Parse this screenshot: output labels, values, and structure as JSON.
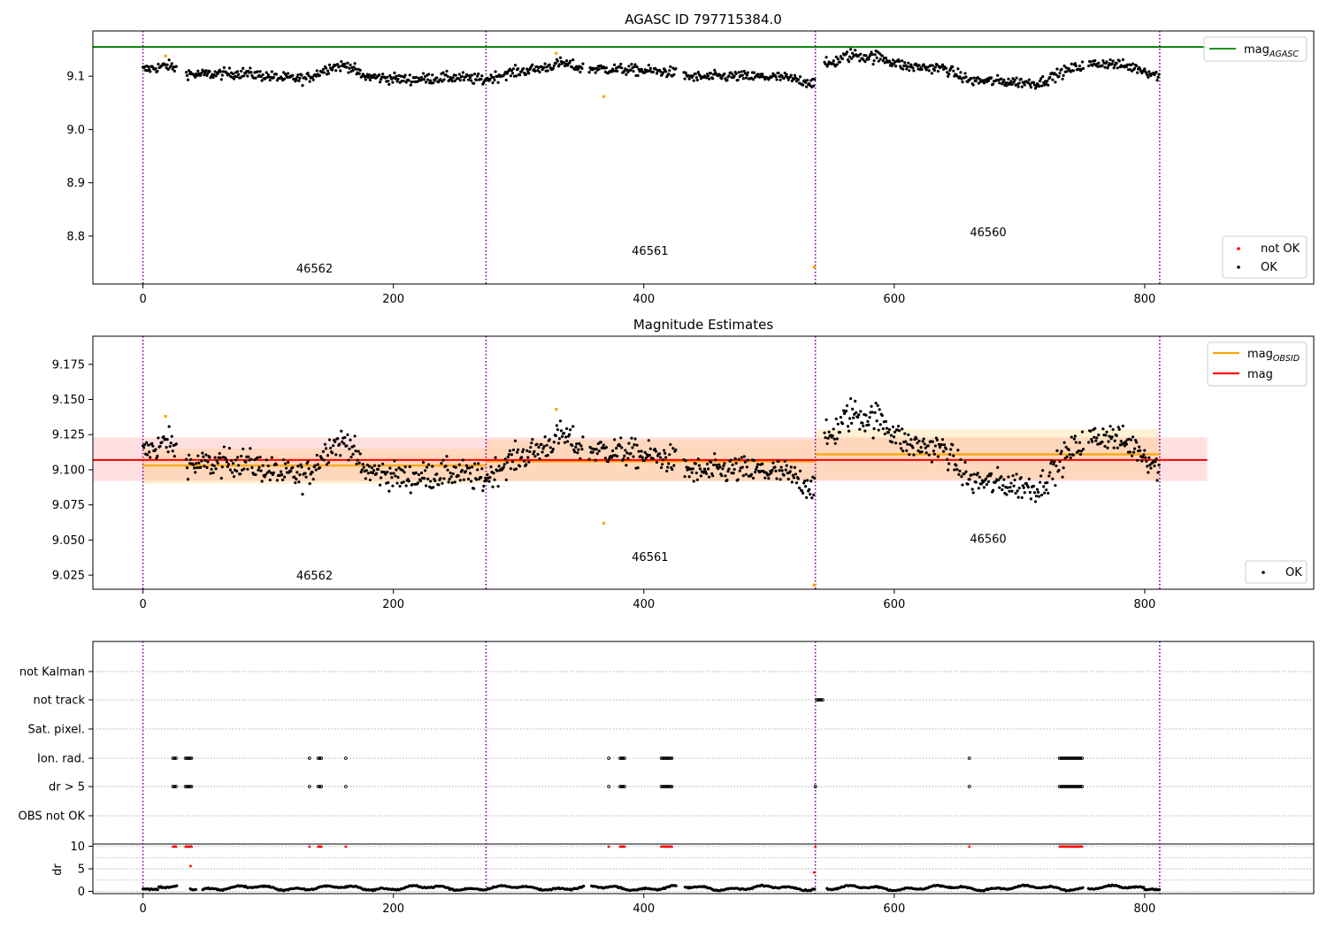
{
  "chart_data": [
    {
      "type": "scatter",
      "title": "AGASC ID 797715384.0",
      "xlabel": "",
      "ylabel": "",
      "xlim": [
        -40,
        935
      ],
      "ylim": [
        8.71,
        9.185
      ],
      "xticks": [
        0,
        200,
        400,
        600,
        800
      ],
      "yticks": [
        "8.8",
        "8.9",
        "9.0",
        "9.1"
      ],
      "ytick_values": [
        8.8,
        8.9,
        9.0,
        9.1
      ],
      "obsid_boundaries": [
        0,
        274,
        537,
        812
      ],
      "obsid_labels": [
        {
          "text": "46562",
          "x": 137,
          "y": 8.732
        },
        {
          "text": "46561",
          "x": 405,
          "y": 8.765
        },
        {
          "text": "46560",
          "x": 675,
          "y": 8.8
        }
      ],
      "reference_line": {
        "name": "mag",
        "subscript": "AGASC",
        "value": 9.155,
        "x_range": [
          -40,
          850
        ],
        "color": "#008000"
      },
      "outliers": [
        {
          "x": 18,
          "y": 9.138
        },
        {
          "x": 330,
          "y": 9.143
        },
        {
          "x": 368,
          "y": 9.062
        },
        {
          "x": 536,
          "y": 8.742
        }
      ],
      "legend_top": "top-right",
      "legend_bottom": "bottom-right",
      "series": [
        {
          "name": "not OK",
          "color": "#ff0000"
        },
        {
          "name": "OK",
          "color": "#000000"
        }
      ]
    },
    {
      "type": "scatter",
      "title": "Magnitude Estimates",
      "xlabel": "",
      "ylabel": "",
      "xlim": [
        -40,
        935
      ],
      "ylim": [
        9.015,
        9.195
      ],
      "xticks": [
        0,
        200,
        400,
        600,
        800
      ],
      "yticks": [
        "9.025",
        "9.050",
        "9.075",
        "9.100",
        "9.125",
        "9.150",
        "9.175"
      ],
      "ytick_values": [
        9.025,
        9.05,
        9.075,
        9.1,
        9.125,
        9.15,
        9.175
      ],
      "obsid_boundaries": [
        0,
        274,
        537,
        812
      ],
      "obsid_labels": [
        {
          "text": "46562",
          "x": 137,
          "y": 9.022
        },
        {
          "text": "46561",
          "x": 405,
          "y": 9.035
        },
        {
          "text": "46560",
          "x": 675,
          "y": 9.048
        }
      ],
      "obsid_means": [
        {
          "x": [
            0,
            274
          ],
          "mean": 9.103,
          "band": [
            9.09,
            9.115
          ]
        },
        {
          "x": [
            274,
            537
          ],
          "mean": 9.106,
          "band": [
            9.092,
            9.121
          ]
        },
        {
          "x": [
            537,
            812
          ],
          "mean": 9.111,
          "band": [
            9.093,
            9.129
          ]
        }
      ],
      "overall": {
        "mean": 9.107,
        "band": [
          9.092,
          9.123
        ],
        "x_range": [
          -40,
          850
        ]
      },
      "outliers": [
        {
          "x": 18,
          "y": 9.138
        },
        {
          "x": 330,
          "y": 9.143
        },
        {
          "x": 368,
          "y": 9.062
        },
        {
          "x": 536,
          "y": 9.018
        }
      ],
      "legend_top": "top-right",
      "legend_bottom": "bottom-right",
      "series": [
        {
          "name": "mag",
          "subscript": "OBSID",
          "color": "#ffa500"
        },
        {
          "name": "mag",
          "color": "#ff0000"
        },
        {
          "name": "OK",
          "color": "#000000"
        }
      ]
    },
    {
      "type": "scatter",
      "title": "",
      "xlim": [
        -40,
        935
      ],
      "categories": [
        "OBS not OK",
        "dr > 5",
        "Ion. rad.",
        "Sat. pixel.",
        "not track",
        "not Kalman"
      ],
      "flag_groups": {
        "dr > 5": [
          [
            24,
            27
          ],
          [
            34,
            40
          ],
          [
            133,
            134
          ],
          [
            140,
            143
          ],
          [
            162,
            162
          ],
          [
            372,
            373
          ],
          [
            381,
            385
          ],
          [
            414,
            423
          ],
          [
            537,
            538
          ],
          [
            660,
            660
          ],
          [
            732,
            751
          ]
        ],
        "Ion. rad.": [
          [
            24,
            27
          ],
          [
            34,
            40
          ],
          [
            133,
            134
          ],
          [
            140,
            143
          ],
          [
            162,
            162
          ],
          [
            372,
            373
          ],
          [
            381,
            385
          ],
          [
            414,
            423
          ],
          [
            660,
            660
          ],
          [
            732,
            751
          ]
        ],
        "not track": [
          [
            538,
            544
          ]
        ]
      }
    },
    {
      "type": "scatter",
      "title": "",
      "xlabel": "",
      "ylabel": "dr",
      "xlim": [
        -40,
        935
      ],
      "ylim": [
        -0.5,
        10.5
      ],
      "yticks": [
        "0",
        "5",
        "10"
      ],
      "ytick_values": [
        0,
        5,
        10
      ],
      "xticks": [
        0,
        200,
        400,
        600,
        800
      ],
      "clipped_value": 10,
      "clipped_color": "#ff0000",
      "extra_points": [
        {
          "x": 38,
          "y": 5.6
        },
        {
          "x": 536,
          "y": 4.2
        }
      ]
    }
  ]
}
